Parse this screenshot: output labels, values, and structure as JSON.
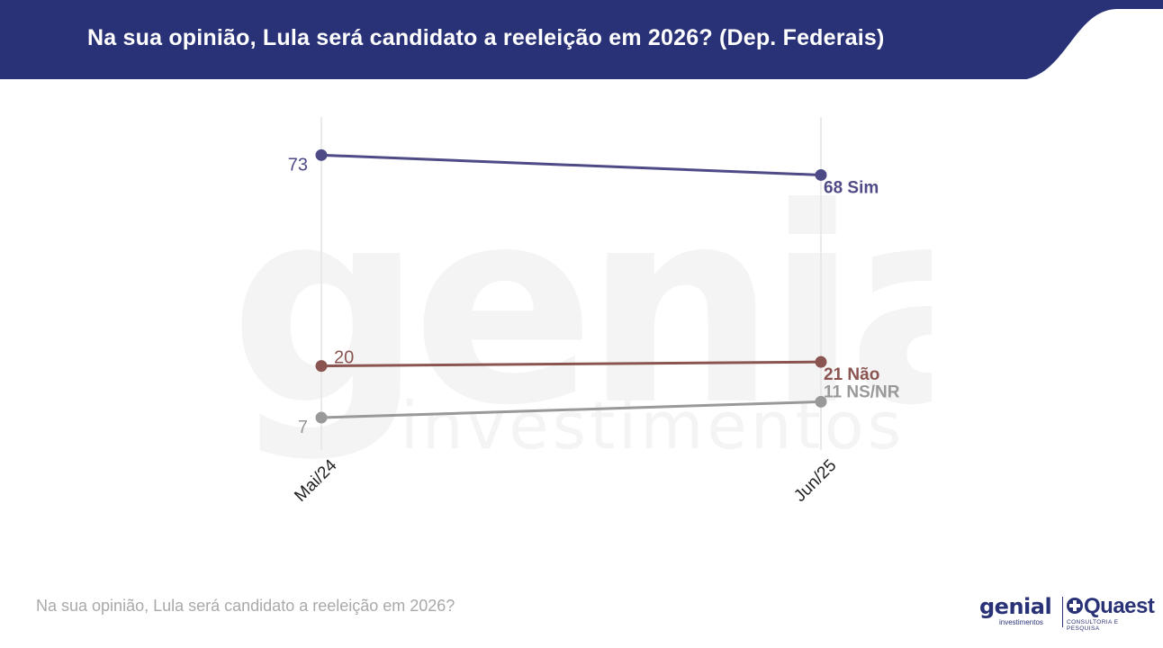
{
  "header": {
    "title": "Na sua opinião, Lula será candidato a reeleição em 2026? (Dep. Federais)",
    "background_color": "#2a3277"
  },
  "watermark": {
    "brand": "genial",
    "sub": "investimentos"
  },
  "chart_data": {
    "type": "line",
    "categories": [
      "Mai/24",
      "Jun/25"
    ],
    "ylim": [
      0,
      80
    ],
    "grid": "vertical",
    "legend": "none",
    "series": [
      {
        "key": "sim",
        "name": "Sim",
        "values": [
          73,
          68
        ],
        "color": "#4e4a86",
        "start_label": "73",
        "end_label": "68 Sim"
      },
      {
        "key": "nao",
        "name": "Não",
        "values": [
          20,
          21
        ],
        "color": "#8a5450",
        "start_label": "20",
        "end_label": "21 Não"
      },
      {
        "key": "nsnr",
        "name": "NS/NR",
        "values": [
          7,
          11
        ],
        "color": "#999999",
        "start_label": "7",
        "end_label": "11 NS/NR"
      }
    ]
  },
  "footer": {
    "question": "Na sua opinião, Lula será candidato a reeleição em 2026?"
  },
  "logos": {
    "genial": "genial",
    "genial_sub": "investimentos",
    "quaest": "Quaest",
    "quaest_sub": "CONSULTORIA E PESQUISA"
  }
}
